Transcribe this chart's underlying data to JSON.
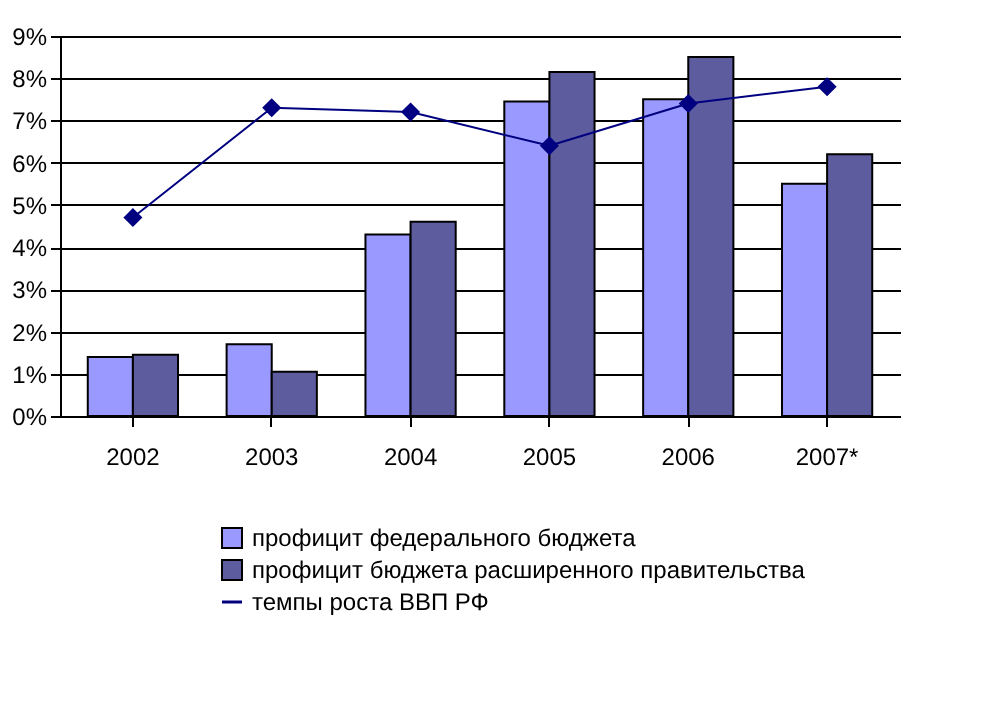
{
  "chart_data": {
    "type": "bar",
    "categories": [
      "2002",
      "2003",
      "2004",
      "2005",
      "2006",
      "2007*"
    ],
    "series": [
      {
        "name": "профицит федерального бюджета",
        "color": "#9999ff",
        "values": [
          1.4,
          1.7,
          4.3,
          7.45,
          7.5,
          5.5
        ]
      },
      {
        "name": "профицит бюджета расширенного правительства",
        "color": "#5c5c9e",
        "values": [
          1.45,
          1.05,
          4.6,
          8.15,
          8.5,
          6.2
        ]
      },
      {
        "name": "темпы роста ВВП РФ",
        "type": "line",
        "color": "#000080",
        "marker": "diamond",
        "values": [
          4.7,
          7.3,
          7.2,
          6.4,
          7.4,
          7.8
        ]
      }
    ],
    "ylim": [
      0,
      9
    ],
    "yticks": [
      {
        "value": 0,
        "label": "0%"
      },
      {
        "value": 1,
        "label": "1%"
      },
      {
        "value": 2,
        "label": "2%"
      },
      {
        "value": 3,
        "label": "3%"
      },
      {
        "value": 4,
        "label": "4%"
      },
      {
        "value": 5,
        "label": "5%"
      },
      {
        "value": 6,
        "label": "6%"
      },
      {
        "value": 7,
        "label": "7%"
      },
      {
        "value": 8,
        "label": "8%"
      },
      {
        "value": 9,
        "label": "9%"
      }
    ],
    "grid": "y",
    "legend": "bottom"
  }
}
